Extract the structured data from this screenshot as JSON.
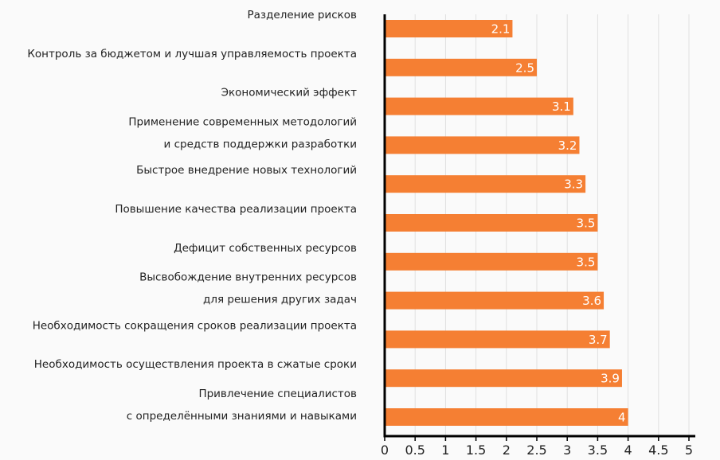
{
  "chart_data": {
    "type": "bar",
    "orientation": "horizontal",
    "categories": [
      [
        "Разделение рисков"
      ],
      [
        "Контроль за бюджетом и лучшая управляемость проекта"
      ],
      [
        "Экономический эффект"
      ],
      [
        "Применение современных методологий",
        "и средств поддержки разработки"
      ],
      [
        "Быстрое внедрение новых технологий"
      ],
      [
        "Повышение качества реализации проекта"
      ],
      [
        "Дефицит собственных ресурсов"
      ],
      [
        "Высвобождение внутренних ресурсов",
        "для решения других задач"
      ],
      [
        "Необходимость сокращения сроков реализации проекта"
      ],
      [
        "Необходимость осуществления проекта в сжатые сроки"
      ],
      [
        "Привлечение специалистов",
        "с определёнными знаниями и навыками"
      ]
    ],
    "values": [
      2.1,
      2.5,
      3.1,
      3.2,
      3.3,
      3.5,
      3.5,
      3.6,
      3.7,
      3.9,
      4
    ],
    "value_labels": [
      "2.1",
      "2.5",
      "3.1",
      "3.2",
      "3.3",
      "3.5",
      "3.5",
      "3.6",
      "3.7",
      "3.9",
      "4"
    ],
    "xlim": [
      0,
      5
    ],
    "xticks": [
      "0",
      "0.5",
      "1",
      "1.5",
      "2",
      "2.5",
      "3",
      "3.5",
      "4",
      "4.5",
      "5"
    ],
    "grid": "vertical",
    "bar_color": "#f57f33",
    "axis_color": "#000000",
    "grid_color": "#e0e0e0",
    "background": "#fafafa"
  }
}
